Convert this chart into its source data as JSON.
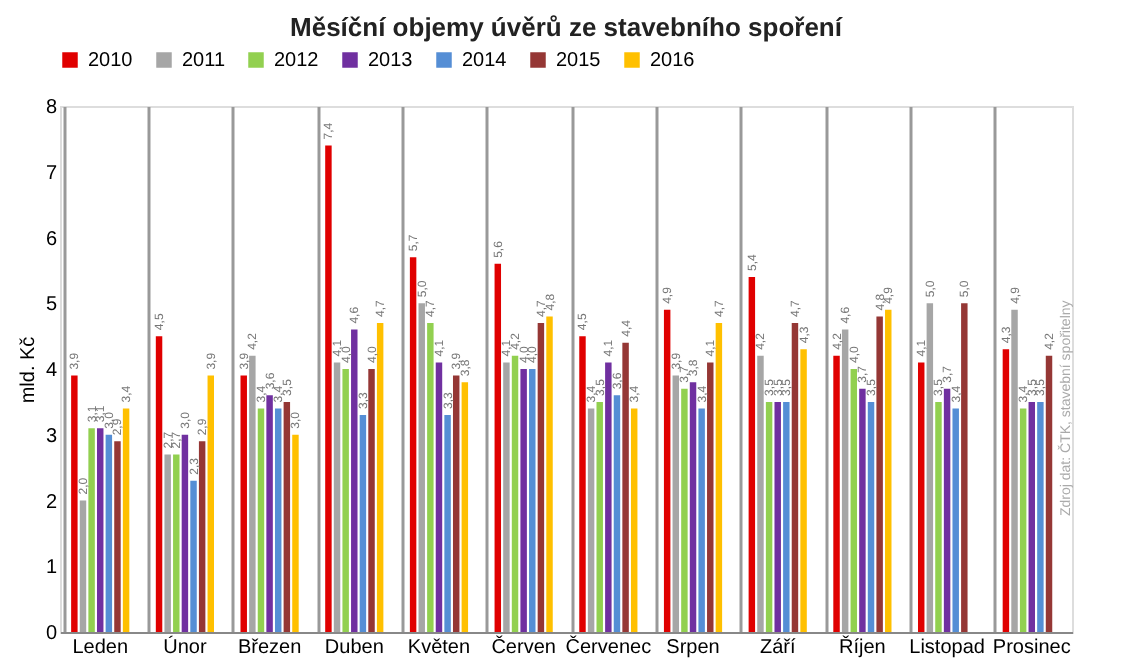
{
  "chart_data": {
    "type": "bar",
    "title": "Měsíční objemy úvěrů ze stavebního spoření",
    "ylabel": "mld. Kč",
    "categories": [
      "Leden",
      "Únor",
      "Březen",
      "Duben",
      "Květen",
      "Červen",
      "Červenec",
      "Srpen",
      "Září",
      "Říjen",
      "Listopad",
      "Prosinec"
    ],
    "series": [
      {
        "name": "2010",
        "color": "#e00000",
        "values": [
          3.9,
          4.5,
          3.9,
          7.4,
          5.7,
          5.6,
          4.5,
          4.9,
          5.4,
          4.2,
          4.1,
          4.3
        ],
        "value_labels": [
          "3,9",
          "4,5",
          "3,9",
          "7,4",
          "5,7",
          "5,6",
          "4,5",
          "4,9",
          "5,4",
          "4,2",
          "4,1",
          "4,3"
        ]
      },
      {
        "name": "2011",
        "color": "#a6a6a6",
        "values": [
          2.0,
          2.7,
          4.2,
          4.1,
          5.0,
          4.1,
          3.4,
          3.9,
          4.2,
          4.6,
          5.0,
          4.9
        ],
        "value_labels": [
          "2,0",
          "2,7",
          "4,2",
          "4,1",
          "5,0",
          "4,1",
          "3,4",
          "3,9",
          "4,2",
          "4,6",
          "5,0",
          "4,9"
        ]
      },
      {
        "name": "2012",
        "color": "#92d050",
        "values": [
          3.1,
          2.7,
          3.4,
          4.0,
          4.7,
          4.2,
          3.5,
          3.7,
          3.5,
          4.0,
          3.5,
          3.4
        ],
        "value_labels": [
          "3,1",
          "2,7",
          "3,4",
          "4,0",
          "4,7",
          "4,2",
          "3,5",
          "3,7",
          "3,5",
          "4,0",
          "3,5",
          "3,4"
        ]
      },
      {
        "name": "2013",
        "color": "#7030a0",
        "values": [
          3.1,
          3.0,
          3.6,
          4.6,
          4.1,
          4.0,
          4.1,
          3.8,
          3.5,
          3.7,
          3.7,
          3.5
        ],
        "value_labels": [
          "3,1",
          "3,0",
          "3,6",
          "4,6",
          "4,1",
          "4,0",
          "4,1",
          "3,8",
          "3,5",
          "3,7",
          "3,7",
          "3,5"
        ]
      },
      {
        "name": "2014",
        "color": "#558ed5",
        "values": [
          3.0,
          2.3,
          3.4,
          3.3,
          3.3,
          4.0,
          3.6,
          3.4,
          3.5,
          3.5,
          3.4,
          3.5
        ],
        "value_labels": [
          "3,0",
          "2,3",
          "3,4",
          "3,3",
          "3,3",
          "4,0",
          "3,6",
          "3,4",
          "3,5",
          "3,5",
          "3,4",
          "3,5"
        ]
      },
      {
        "name": "2015",
        "color": "#953735",
        "values": [
          2.9,
          2.9,
          3.5,
          4.0,
          3.9,
          4.7,
          4.4,
          4.1,
          4.7,
          4.8,
          5.0,
          4.2
        ],
        "value_labels": [
          "2,9",
          "2,9",
          "3,5",
          "4,0",
          "3,9",
          "4,7",
          "4,4",
          "4,1",
          "4,7",
          "4,8",
          "5,0",
          "4,2"
        ]
      },
      {
        "name": "2016",
        "color": "#ffc000",
        "values": [
          3.4,
          3.9,
          3.0,
          4.7,
          3.8,
          4.8,
          3.4,
          4.7,
          4.3,
          4.9,
          null,
          null
        ],
        "value_labels": [
          "3,4",
          "3,9",
          "3,0",
          "4,7",
          "3,8",
          "4,8",
          "3,4",
          "4,7",
          "4,3",
          "4,9",
          null,
          null
        ]
      }
    ],
    "ylim": [
      0,
      8
    ],
    "yticks": [
      0,
      1,
      2,
      3,
      4,
      5,
      6,
      7,
      8
    ],
    "grid": "x",
    "legend": "top",
    "annotations": [
      "Zdroj dat: ČTK, stavební spořitelny"
    ]
  }
}
